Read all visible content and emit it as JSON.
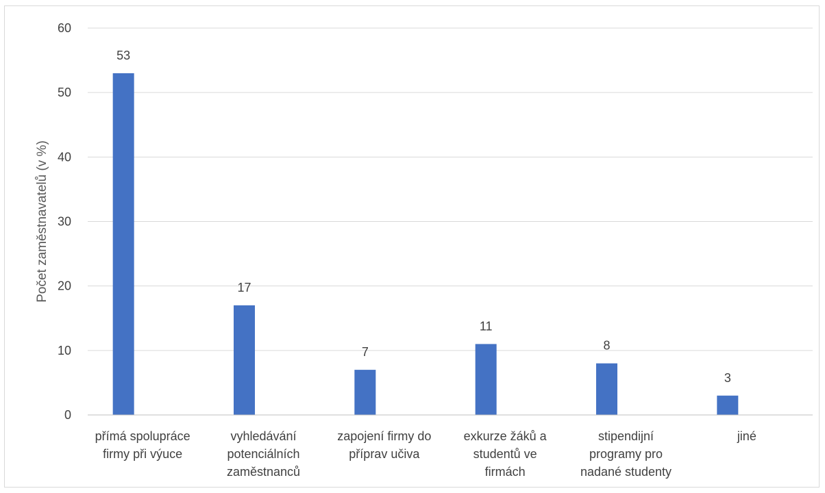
{
  "chart_data": {
    "type": "bar",
    "title": "",
    "ylabel": "Počet zaměstnavatelů (v %)",
    "xlabel": "",
    "ylim": [
      0,
      60
    ],
    "yticks": [
      0,
      10,
      20,
      30,
      40,
      50,
      60
    ],
    "grid": true,
    "legend": "none",
    "color": "#4472c4",
    "categories": [
      [
        "přímá spolupráce",
        "firmy při výuce"
      ],
      [
        "vyhledávání",
        "potenciálních",
        "zaměstnanců"
      ],
      [
        "zapojení firmy do",
        "příprav učiva"
      ],
      [
        "exkurze žáků a",
        "studentů ve",
        "firmách"
      ],
      [
        "stipendijní",
        "programy pro",
        "nadané studenty"
      ],
      [
        "jiné"
      ]
    ],
    "values": [
      53,
      17,
      7,
      11,
      8,
      3
    ],
    "data_labels": [
      "53",
      "17",
      "7",
      "11",
      "8",
      "3"
    ]
  }
}
